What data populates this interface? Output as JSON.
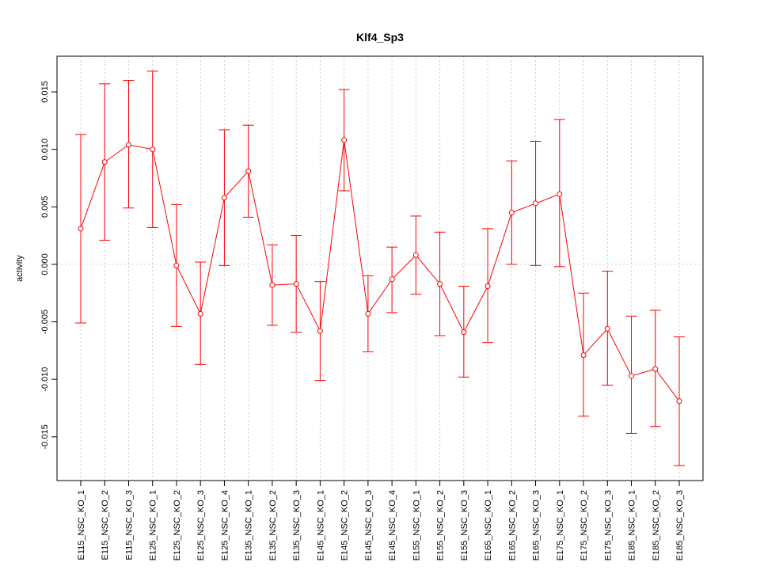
{
  "chart_data": {
    "type": "line",
    "title": "Klf4_Sp3",
    "xlabel": "",
    "ylabel": "activity",
    "ylim": [
      -0.0188,
      0.0181
    ],
    "yticks": [
      -0.015,
      -0.01,
      -0.005,
      0.0,
      0.005,
      0.01,
      0.015
    ],
    "ytick_labels": [
      "-0.015",
      "-0.010",
      "-0.005",
      "0.000",
      "0.005",
      "0.010",
      "0.015"
    ],
    "grid": true,
    "reference_line": 0.0,
    "color": "#ff0000",
    "categories": [
      "E115_NSC_KO_1",
      "E115_NSC_KO_2",
      "E115_NSC_KO_3",
      "E125_NSC_KO_1",
      "E125_NSC_KO_2",
      "E125_NSC_KO_3",
      "E125_NSC_KO_4",
      "E135_NSC_KO_1",
      "E135_NSC_KO_2",
      "E135_NSC_KO_3",
      "E145_NSC_KO_1",
      "E145_NSC_KO_2",
      "E145_NSC_KO_3",
      "E145_NSC_KO_4",
      "E155_NSC_KO_1",
      "E155_NSC_KO_2",
      "E155_NSC_KO_3",
      "E165_NSC_KO_1",
      "E165_NSC_KO_2",
      "E165_NSC_KO_3",
      "E175_NSC_KO_1",
      "E175_NSC_KO_2",
      "E175_NSC_KO_3",
      "E185_NSC_KO_1",
      "E185_NSC_KO_2",
      "E185_NSC_KO_3"
    ],
    "values": [
      0.0031,
      0.0089,
      0.0104,
      0.01,
      -0.0001,
      -0.0043,
      0.0058,
      0.0081,
      -0.0018,
      -0.0017,
      -0.0058,
      0.0108,
      -0.0043,
      -0.0013,
      0.0008,
      -0.0017,
      -0.0059,
      -0.0019,
      0.0045,
      0.0053,
      0.0061,
      -0.0079,
      -0.0056,
      -0.0097,
      -0.0091,
      -0.0119
    ],
    "lower": [
      -0.0051,
      0.0021,
      0.0049,
      0.0032,
      -0.0054,
      -0.0087,
      -0.0001,
      0.0041,
      -0.0053,
      -0.0059,
      -0.0101,
      0.0064,
      -0.0076,
      -0.0042,
      -0.0026,
      -0.0062,
      -0.0098,
      -0.0068,
      0.0,
      -0.0001,
      -0.0002,
      -0.0132,
      -0.0105,
      -0.0147,
      -0.0141,
      -0.0175
    ],
    "upper": [
      0.0113,
      0.0157,
      0.016,
      0.0168,
      0.0052,
      0.0002,
      0.0117,
      0.0121,
      0.0017,
      0.0025,
      -0.0015,
      0.0152,
      -0.001,
      0.0015,
      0.0042,
      0.0028,
      -0.0019,
      0.0031,
      0.009,
      0.0107,
      0.0126,
      -0.0025,
      -0.0006,
      -0.0045,
      -0.004,
      -0.0063
    ]
  }
}
